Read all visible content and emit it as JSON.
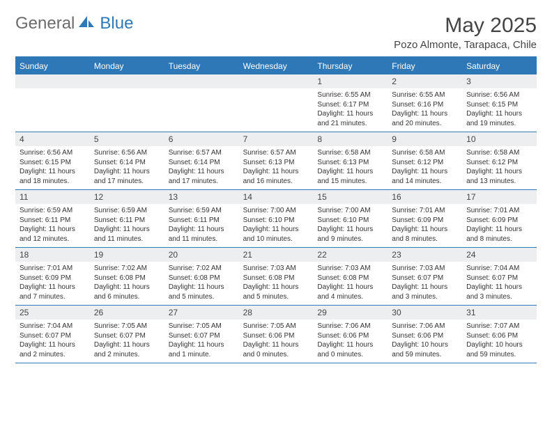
{
  "logo": {
    "part1": "General",
    "part2": "Blue"
  },
  "title": "May 2025",
  "location": "Pozo Almonte, Tarapaca, Chile",
  "colors": {
    "brand_blue": "#2f78b7",
    "header_text": "#ffffff",
    "daynum_bg": "#eceef0",
    "body_text": "#333333",
    "title_text": "#444444",
    "logo_gray": "#6b6b6b"
  },
  "weekday_headers": [
    "Sunday",
    "Monday",
    "Tuesday",
    "Wednesday",
    "Thursday",
    "Friday",
    "Saturday"
  ],
  "weeks": [
    [
      {
        "num": "",
        "sunrise": "",
        "sunset": "",
        "daylight": ""
      },
      {
        "num": "",
        "sunrise": "",
        "sunset": "",
        "daylight": ""
      },
      {
        "num": "",
        "sunrise": "",
        "sunset": "",
        "daylight": ""
      },
      {
        "num": "",
        "sunrise": "",
        "sunset": "",
        "daylight": ""
      },
      {
        "num": "1",
        "sunrise": "Sunrise: 6:55 AM",
        "sunset": "Sunset: 6:17 PM",
        "daylight": "Daylight: 11 hours and 21 minutes."
      },
      {
        "num": "2",
        "sunrise": "Sunrise: 6:55 AM",
        "sunset": "Sunset: 6:16 PM",
        "daylight": "Daylight: 11 hours and 20 minutes."
      },
      {
        "num": "3",
        "sunrise": "Sunrise: 6:56 AM",
        "sunset": "Sunset: 6:15 PM",
        "daylight": "Daylight: 11 hours and 19 minutes."
      }
    ],
    [
      {
        "num": "4",
        "sunrise": "Sunrise: 6:56 AM",
        "sunset": "Sunset: 6:15 PM",
        "daylight": "Daylight: 11 hours and 18 minutes."
      },
      {
        "num": "5",
        "sunrise": "Sunrise: 6:56 AM",
        "sunset": "Sunset: 6:14 PM",
        "daylight": "Daylight: 11 hours and 17 minutes."
      },
      {
        "num": "6",
        "sunrise": "Sunrise: 6:57 AM",
        "sunset": "Sunset: 6:14 PM",
        "daylight": "Daylight: 11 hours and 17 minutes."
      },
      {
        "num": "7",
        "sunrise": "Sunrise: 6:57 AM",
        "sunset": "Sunset: 6:13 PM",
        "daylight": "Daylight: 11 hours and 16 minutes."
      },
      {
        "num": "8",
        "sunrise": "Sunrise: 6:58 AM",
        "sunset": "Sunset: 6:13 PM",
        "daylight": "Daylight: 11 hours and 15 minutes."
      },
      {
        "num": "9",
        "sunrise": "Sunrise: 6:58 AM",
        "sunset": "Sunset: 6:12 PM",
        "daylight": "Daylight: 11 hours and 14 minutes."
      },
      {
        "num": "10",
        "sunrise": "Sunrise: 6:58 AM",
        "sunset": "Sunset: 6:12 PM",
        "daylight": "Daylight: 11 hours and 13 minutes."
      }
    ],
    [
      {
        "num": "11",
        "sunrise": "Sunrise: 6:59 AM",
        "sunset": "Sunset: 6:11 PM",
        "daylight": "Daylight: 11 hours and 12 minutes."
      },
      {
        "num": "12",
        "sunrise": "Sunrise: 6:59 AM",
        "sunset": "Sunset: 6:11 PM",
        "daylight": "Daylight: 11 hours and 11 minutes."
      },
      {
        "num": "13",
        "sunrise": "Sunrise: 6:59 AM",
        "sunset": "Sunset: 6:11 PM",
        "daylight": "Daylight: 11 hours and 11 minutes."
      },
      {
        "num": "14",
        "sunrise": "Sunrise: 7:00 AM",
        "sunset": "Sunset: 6:10 PM",
        "daylight": "Daylight: 11 hours and 10 minutes."
      },
      {
        "num": "15",
        "sunrise": "Sunrise: 7:00 AM",
        "sunset": "Sunset: 6:10 PM",
        "daylight": "Daylight: 11 hours and 9 minutes."
      },
      {
        "num": "16",
        "sunrise": "Sunrise: 7:01 AM",
        "sunset": "Sunset: 6:09 PM",
        "daylight": "Daylight: 11 hours and 8 minutes."
      },
      {
        "num": "17",
        "sunrise": "Sunrise: 7:01 AM",
        "sunset": "Sunset: 6:09 PM",
        "daylight": "Daylight: 11 hours and 8 minutes."
      }
    ],
    [
      {
        "num": "18",
        "sunrise": "Sunrise: 7:01 AM",
        "sunset": "Sunset: 6:09 PM",
        "daylight": "Daylight: 11 hours and 7 minutes."
      },
      {
        "num": "19",
        "sunrise": "Sunrise: 7:02 AM",
        "sunset": "Sunset: 6:08 PM",
        "daylight": "Daylight: 11 hours and 6 minutes."
      },
      {
        "num": "20",
        "sunrise": "Sunrise: 7:02 AM",
        "sunset": "Sunset: 6:08 PM",
        "daylight": "Daylight: 11 hours and 5 minutes."
      },
      {
        "num": "21",
        "sunrise": "Sunrise: 7:03 AM",
        "sunset": "Sunset: 6:08 PM",
        "daylight": "Daylight: 11 hours and 5 minutes."
      },
      {
        "num": "22",
        "sunrise": "Sunrise: 7:03 AM",
        "sunset": "Sunset: 6:08 PM",
        "daylight": "Daylight: 11 hours and 4 minutes."
      },
      {
        "num": "23",
        "sunrise": "Sunrise: 7:03 AM",
        "sunset": "Sunset: 6:07 PM",
        "daylight": "Daylight: 11 hours and 3 minutes."
      },
      {
        "num": "24",
        "sunrise": "Sunrise: 7:04 AM",
        "sunset": "Sunset: 6:07 PM",
        "daylight": "Daylight: 11 hours and 3 minutes."
      }
    ],
    [
      {
        "num": "25",
        "sunrise": "Sunrise: 7:04 AM",
        "sunset": "Sunset: 6:07 PM",
        "daylight": "Daylight: 11 hours and 2 minutes."
      },
      {
        "num": "26",
        "sunrise": "Sunrise: 7:05 AM",
        "sunset": "Sunset: 6:07 PM",
        "daylight": "Daylight: 11 hours and 2 minutes."
      },
      {
        "num": "27",
        "sunrise": "Sunrise: 7:05 AM",
        "sunset": "Sunset: 6:07 PM",
        "daylight": "Daylight: 11 hours and 1 minute."
      },
      {
        "num": "28",
        "sunrise": "Sunrise: 7:05 AM",
        "sunset": "Sunset: 6:06 PM",
        "daylight": "Daylight: 11 hours and 0 minutes."
      },
      {
        "num": "29",
        "sunrise": "Sunrise: 7:06 AM",
        "sunset": "Sunset: 6:06 PM",
        "daylight": "Daylight: 11 hours and 0 minutes."
      },
      {
        "num": "30",
        "sunrise": "Sunrise: 7:06 AM",
        "sunset": "Sunset: 6:06 PM",
        "daylight": "Daylight: 10 hours and 59 minutes."
      },
      {
        "num": "31",
        "sunrise": "Sunrise: 7:07 AM",
        "sunset": "Sunset: 6:06 PM",
        "daylight": "Daylight: 10 hours and 59 minutes."
      }
    ]
  ]
}
